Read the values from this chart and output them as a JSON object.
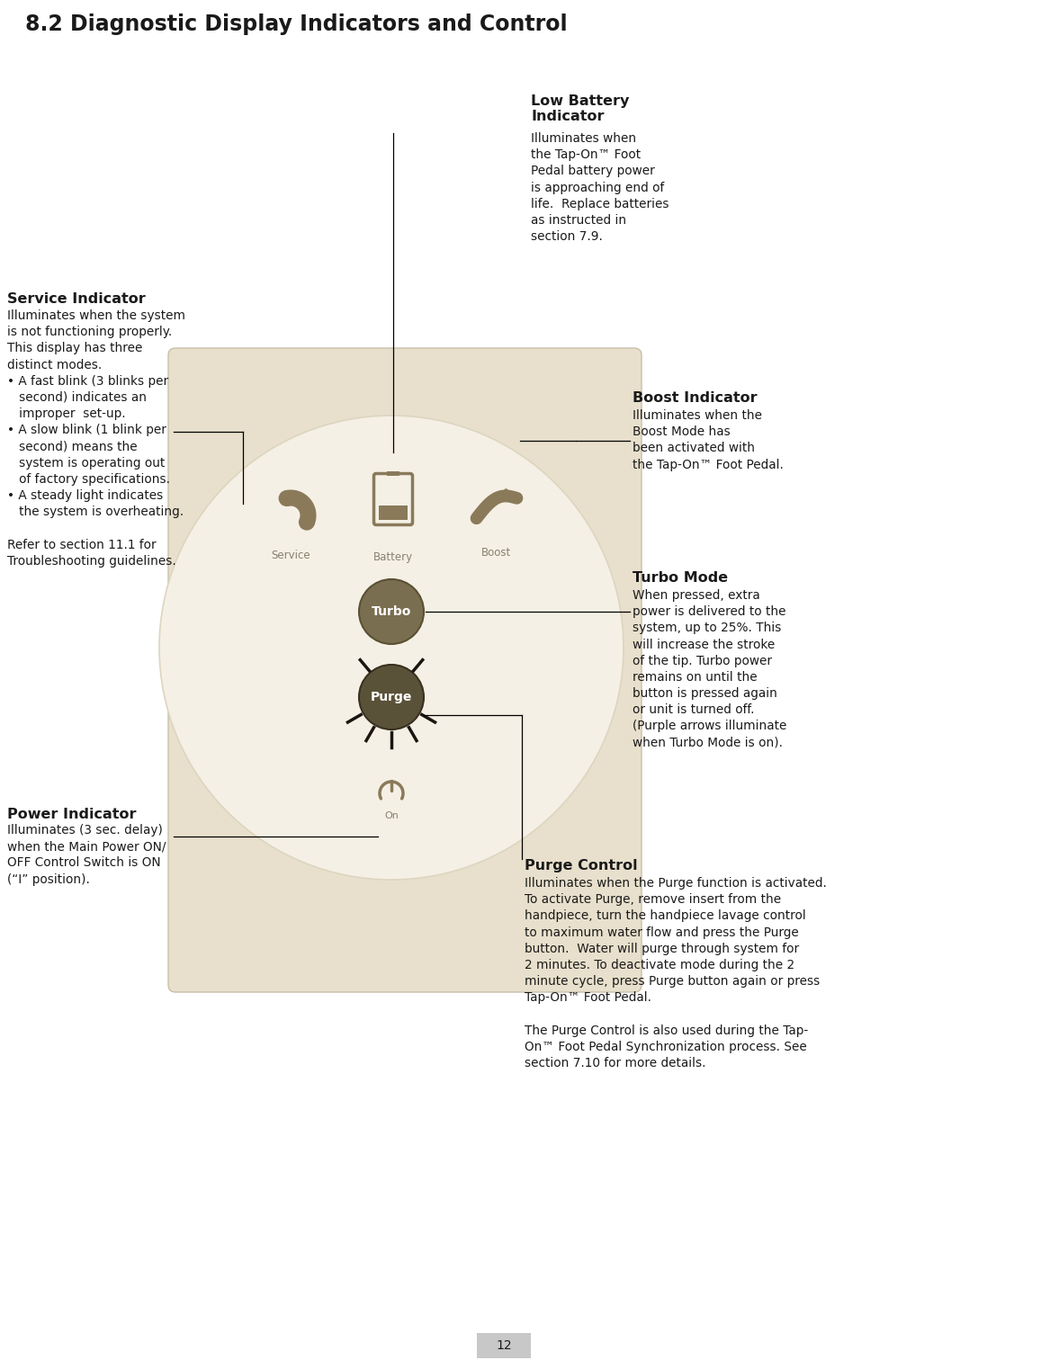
{
  "title": "8.2 Diagnostic Display Indicators and Control",
  "page_number": "12",
  "bg_color": "#ffffff",
  "text_color": "#1a1a1a",
  "line_color": "#000000",
  "device_bg": "#e8e0cc",
  "device_face_color": "#f5f0e5",
  "icon_color": "#8a7a5a",
  "icon_label_color": "#888070",
  "turbo_btn_color": "#7a6e50",
  "purge_btn_color": "#5a5238",
  "label_power_title": "Power Indicator",
  "label_power_body": "Illuminates (3 sec. delay)\nwhen the Main Power ON/\nOFF Control Switch is ON\n(“I” position).",
  "label_battery_title": "Low Battery\nIndicator",
  "label_battery_body": "Illuminates when\nthe Tap-On™ Foot\nPedal battery power\nis approaching end of\nlife.  Replace batteries\nas instructed in\nsection 7.9.",
  "label_service_title": "Service Indicator",
  "label_service_body": "Illuminates when the system\nis not functioning properly.\nThis display has three\ndistinct modes.\n• A fast blink (3 blinks per\n   second) indicates an\n   improper  set-up.\n• A slow blink (1 blink per\n   second) means the\n   system is operating out\n   of factory specifications.\n• A steady light indicates\n   the system is overheating.\n\nRefer to section 11.1 for\nTroubleshooting guidelines.",
  "label_boost_title": "Boost Indicator",
  "label_boost_body": "Illuminates when the\nBoost Mode has\nbeen activated with\nthe Tap-On™ Foot Pedal.",
  "label_turbo_title": "Turbo Mode",
  "label_turbo_body": "When pressed, extra\npower is delivered to the\nsystem, up to 25%. This\nwill increase the stroke\nof the tip. Turbo power\nremains on until the\nbutton is pressed again\nor unit is turned off.\n(Purple arrows illuminate\nwhen Turbo Mode is on).",
  "label_purge_title": "Purge Control",
  "label_purge_body": "Illuminates when the Purge function is activated.\nTo activate Purge, remove insert from the\nhandpiece, turn the handpiece lavage control\nto maximum water flow and press the Purge\nbutton.  Water will purge through system for\n2 minutes. To deactivate mode during the 2\nminute cycle, press Purge button again or press\nTap-On™ Foot Pedal.\n\nThe Purge Control is also used during the Tap-\nOn™ Foot Pedal Synchronization process. See\nsection 7.10 for more details."
}
